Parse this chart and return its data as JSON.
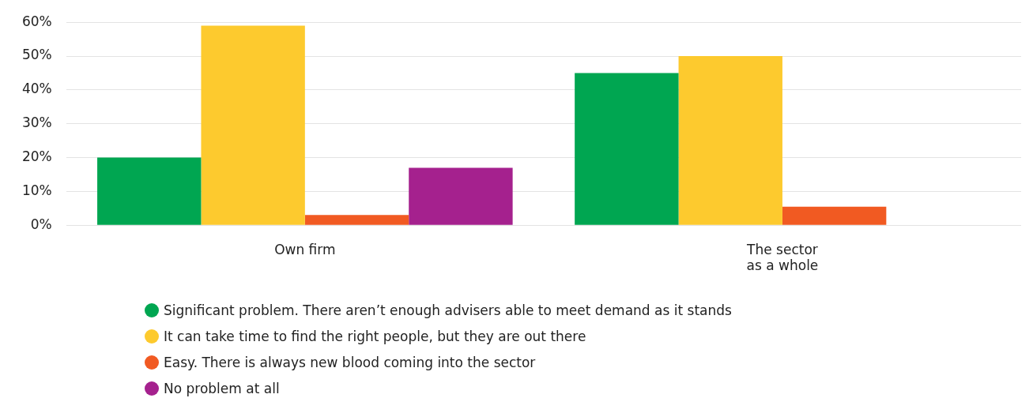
{
  "chart_data": {
    "type": "bar",
    "categories": [
      "Own firm",
      "The sector as a whole"
    ],
    "series": [
      {
        "name": "Significant problem. There aren’t enough advisers able to meet demand as it stands",
        "color": "#00a651",
        "values": [
          20,
          45
        ]
      },
      {
        "name": "It can take time to find the right people, but they are out there",
        "color": "#fdca2e",
        "values": [
          59,
          50
        ]
      },
      {
        "name": "Easy. There is always new blood coming into the sector",
        "color": "#f15a22",
        "values": [
          3,
          5.5
        ]
      },
      {
        "name": "No problem at all",
        "color": "#a5218e",
        "values": [
          17,
          null
        ]
      }
    ],
    "ylim": [
      0,
      60
    ],
    "yticks": [
      {
        "value": 0,
        "label": "0%"
      },
      {
        "value": 10,
        "label": "10%"
      },
      {
        "value": 20,
        "label": "20%"
      },
      {
        "value": 30,
        "label": "30%"
      },
      {
        "value": 40,
        "label": "40%"
      },
      {
        "value": 50,
        "label": "50%"
      },
      {
        "value": 60,
        "label": "60%"
      }
    ],
    "grid": "y",
    "legend": "bottom",
    "marker": "circle"
  }
}
